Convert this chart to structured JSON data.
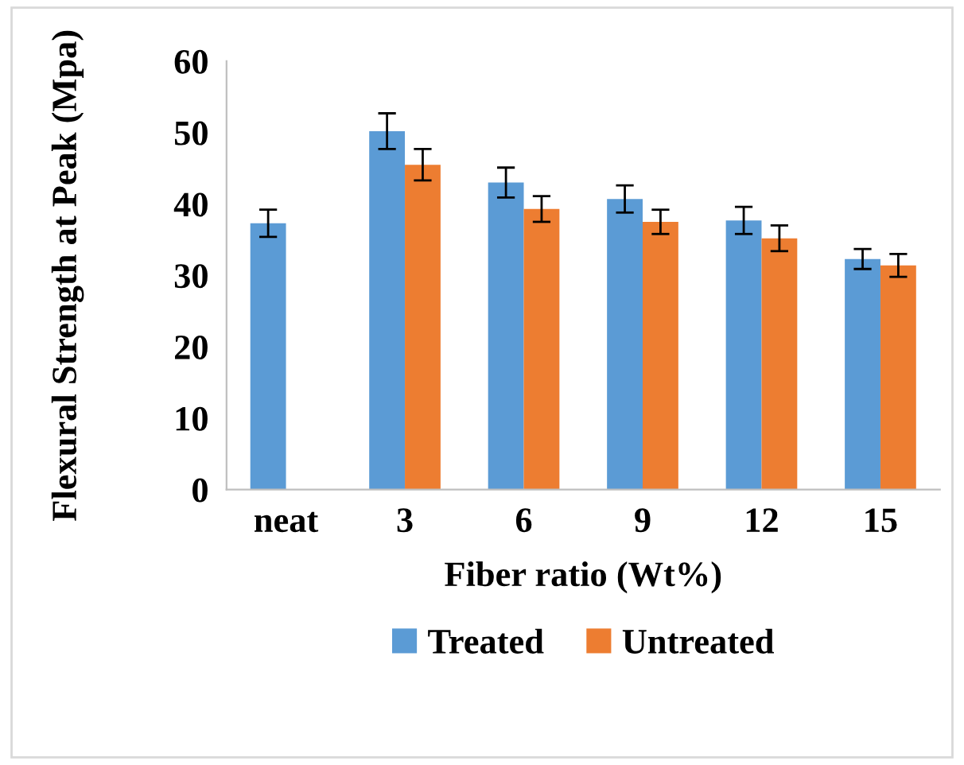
{
  "chart_data": {
    "type": "bar",
    "xlabel": "Fiber ratio (Wt%)",
    "ylabel": "Flexural Strength at Peak (Mpa)",
    "categories": [
      "neat",
      "3",
      "6",
      "9",
      "12",
      "15"
    ],
    "series": [
      {
        "name": "Treated",
        "color": "#5b9bd5",
        "values": [
          37.3,
          50.2,
          43.0,
          40.7,
          37.7,
          32.3
        ],
        "errors": [
          1.9,
          2.5,
          2.1,
          1.9,
          1.9,
          1.4
        ]
      },
      {
        "name": "Untreated",
        "color": "#ed7d31",
        "values": [
          null,
          45.5,
          39.3,
          37.5,
          35.2,
          31.4
        ],
        "errors": [
          null,
          2.2,
          1.8,
          1.7,
          1.8,
          1.6
        ]
      }
    ],
    "ylim": [
      0,
      60
    ],
    "yticks": [
      0,
      10,
      20,
      30,
      40,
      50,
      60
    ],
    "grid": false,
    "legend": "bottom"
  }
}
